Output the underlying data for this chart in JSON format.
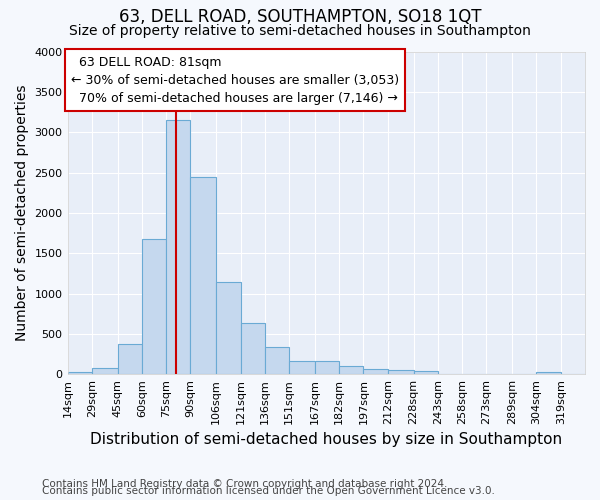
{
  "title": "63, DELL ROAD, SOUTHAMPTON, SO18 1QT",
  "subtitle": "Size of property relative to semi-detached houses in Southampton",
  "xlabel": "Distribution of semi-detached houses by size in Southampton",
  "ylabel": "Number of semi-detached properties",
  "footer_line1": "Contains HM Land Registry data © Crown copyright and database right 2024.",
  "footer_line2": "Contains public sector information licensed under the Open Government Licence v3.0.",
  "property_label": "63 DELL ROAD: 81sqm",
  "smaller_pct": 30,
  "smaller_count": "3,053",
  "larger_pct": 70,
  "larger_count": "7,146",
  "bin_labels": [
    "14sqm",
    "29sqm",
    "45sqm",
    "60sqm",
    "75sqm",
    "90sqm",
    "106sqm",
    "121sqm",
    "136sqm",
    "151sqm",
    "167sqm",
    "182sqm",
    "197sqm",
    "212sqm",
    "228sqm",
    "243sqm",
    "258sqm",
    "273sqm",
    "289sqm",
    "304sqm",
    "319sqm"
  ],
  "bin_left_edges": [
    14,
    29,
    45,
    60,
    75,
    90,
    106,
    121,
    136,
    151,
    167,
    182,
    197,
    212,
    228,
    243,
    258,
    273,
    289,
    304,
    319
  ],
  "bin_widths": [
    15,
    16,
    15,
    15,
    15,
    16,
    15,
    15,
    15,
    16,
    15,
    15,
    15,
    16,
    15,
    15,
    15,
    16,
    15,
    15,
    15
  ],
  "bar_values": [
    30,
    80,
    380,
    1670,
    3150,
    2450,
    1140,
    630,
    340,
    160,
    160,
    100,
    60,
    55,
    35,
    0,
    0,
    0,
    0,
    30,
    0
  ],
  "bar_color": "#c5d8ee",
  "bar_edge_color": "#6aaad4",
  "vline_x": 81,
  "vline_color": "#cc0000",
  "annotation_box_color": "#cc0000",
  "ylim": [
    0,
    4000
  ],
  "yticks": [
    0,
    500,
    1000,
    1500,
    2000,
    2500,
    3000,
    3500,
    4000
  ],
  "bg_color": "#f5f8fd",
  "plot_bg_color": "#e8eef8",
  "grid_color": "#ffffff",
  "title_fontsize": 12,
  "subtitle_fontsize": 10,
  "axis_label_fontsize": 10,
  "tick_fontsize": 8,
  "annotation_fontsize": 9,
  "footer_fontsize": 7.5
}
